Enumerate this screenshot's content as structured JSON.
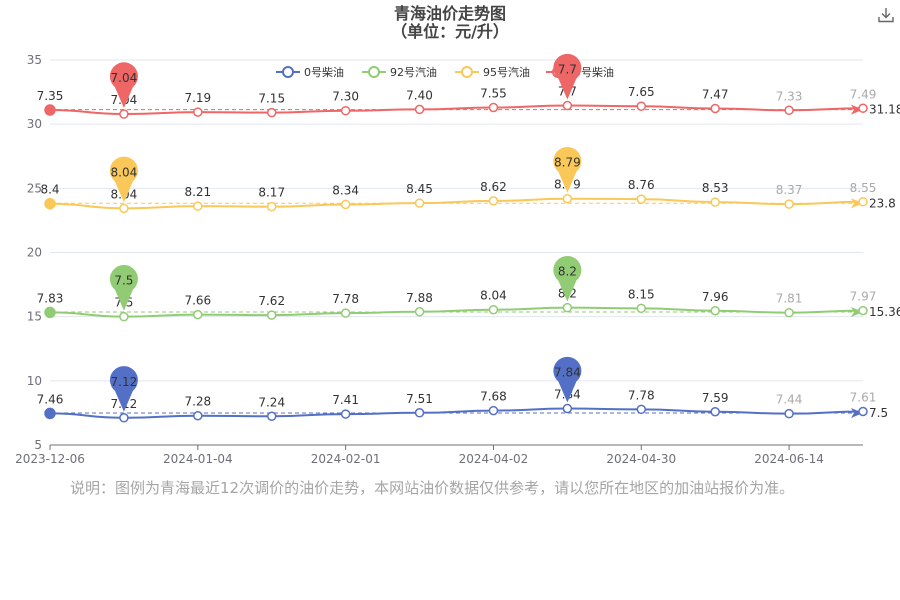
{
  "chart_data": {
    "type": "line",
    "title": "青海油价走势图",
    "subtitle": "（单位：元/升）",
    "x_ticks": [
      "2023-12-06",
      "2024-01-04",
      "2024-02-01",
      "2024-04-02",
      "2024-04-30",
      "2024-06-14"
    ],
    "y_ticks": [
      "5",
      "10",
      "15",
      "20",
      "25",
      "30",
      "35"
    ],
    "grid": true,
    "legend_position": "top",
    "series": [
      {
        "name": "0号柴油",
        "color": "#5470c6",
        "values": [
          7.46,
          7.12,
          7.28,
          7.24,
          7.41,
          7.51,
          7.68,
          7.84,
          7.78,
          7.59,
          7.44,
          7.61
        ],
        "labels": [
          "7.46",
          "7.12",
          "7.28",
          "7.24",
          "7.41",
          "7.51",
          "7.68",
          "7.84",
          "7.78",
          "7.59",
          "7.44",
          "7.61"
        ],
        "max_value": "7.84",
        "min_value": "7.12",
        "average": "7.5"
      },
      {
        "name": "92号汽油",
        "color": "#91cc75",
        "values": [
          7.83,
          7.5,
          7.66,
          7.62,
          7.78,
          7.88,
          8.04,
          8.2,
          8.15,
          7.96,
          7.81,
          7.97
        ],
        "labels": [
          "7.83",
          "7.5",
          "7.66",
          "7.62",
          "7.78",
          "7.88",
          "8.04",
          "8.2",
          "8.15",
          "7.96",
          "7.81",
          "7.97"
        ],
        "max_value": "8.2",
        "min_value": "7.5",
        "average": "15.36"
      },
      {
        "name": "95号汽油",
        "color": "#fac858",
        "values": [
          8.4,
          8.04,
          8.21,
          8.17,
          8.34,
          8.45,
          8.62,
          8.79,
          8.76,
          8.53,
          8.37,
          8.55
        ],
        "labels": [
          "8.4",
          "8.04",
          "8.21",
          "8.17",
          "8.34",
          "8.45",
          "8.62",
          "8.79",
          "8.76",
          "8.53",
          "8.37",
          "8.55"
        ],
        "max_value": "8.79",
        "min_value": "8.04",
        "average": "23.8"
      },
      {
        "name": "0号柴油",
        "color": "#ee6666",
        "values": [
          7.35,
          7.04,
          7.19,
          7.15,
          7.3,
          7.4,
          7.55,
          7.7,
          7.65,
          7.47,
          7.33,
          7.49
        ],
        "labels": [
          "7.35",
          "7.04",
          "7.19",
          "7.15",
          "7.30",
          "7.40",
          "7.55",
          "7.7",
          "7.65",
          "7.47",
          "7.33",
          "7.49"
        ],
        "max_value": "7.7",
        "min_value": "7.04",
        "average": "31.18"
      }
    ]
  },
  "note": "说明：图例为青海最近12次调价的油价走势，本网站油价数据仅供参考，请以您所在地区的加油站报价为准。",
  "download_icon": "download-icon"
}
